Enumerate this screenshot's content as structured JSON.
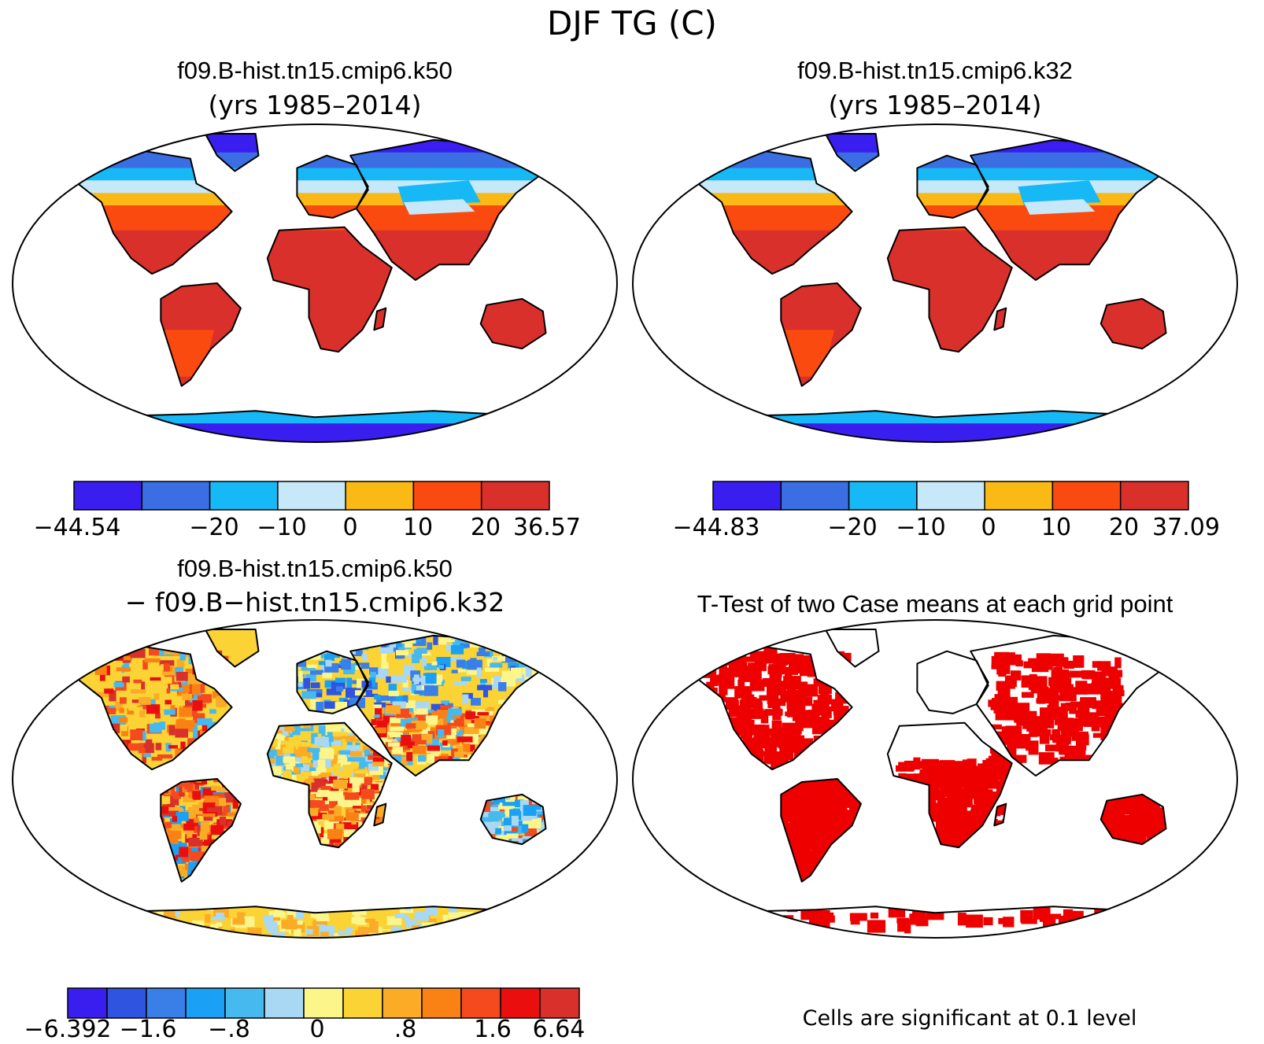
{
  "figure_title": "DJF TG (C)",
  "panels": [
    {
      "id": "k50",
      "title": "f09.B-hist.tn15.cmip6.k50",
      "subtitle": "(yrs 1985–2014)",
      "colorbar": {
        "colors": [
          "#3a1ef0",
          "#3a6ee2",
          "#17b8f6",
          "#c6e8f8",
          "#fbb916",
          "#fb4a10",
          "#d9302c"
        ],
        "labels": [
          "−44.54",
          "−20",
          "−10",
          "0",
          "10",
          "20",
          "36.57"
        ]
      }
    },
    {
      "id": "k32",
      "title": "f09.B-hist.tn15.cmip6.k32",
      "subtitle": "(yrs 1985–2014)",
      "colorbar": {
        "colors": [
          "#3a1ef0",
          "#3a6ee2",
          "#17b8f6",
          "#c6e8f8",
          "#fbb916",
          "#fb4a10",
          "#d9302c"
        ],
        "labels": [
          "−44.83",
          "−20",
          "−10",
          "0",
          "10",
          "20",
          "37.09"
        ]
      }
    },
    {
      "id": "diff",
      "title": "f09.B-hist.tn15.cmip6.k50",
      "subtitle": "− f09.B−hist.tn15.cmip6.k32",
      "colorbar": {
        "colors": [
          "#3a1ef0",
          "#2f55e0",
          "#3a7ee8",
          "#1aa0f4",
          "#46b9ef",
          "#a8d8f4",
          "#fbf58a",
          "#fbd334",
          "#fbab26",
          "#fa8214",
          "#f44a1e",
          "#ea0e0e",
          "#d9302c"
        ],
        "labels": [
          "−6.392",
          "−1.6",
          "−.8",
          "0",
          ".8",
          "1.6",
          "6.64"
        ]
      }
    },
    {
      "id": "ttest",
      "title": "T-Test of two Case means at each grid point",
      "note": "Cells are significant at 0.1 level"
    }
  ],
  "colors": {
    "significant": "#ee0000",
    "land_outline": "#000000"
  }
}
